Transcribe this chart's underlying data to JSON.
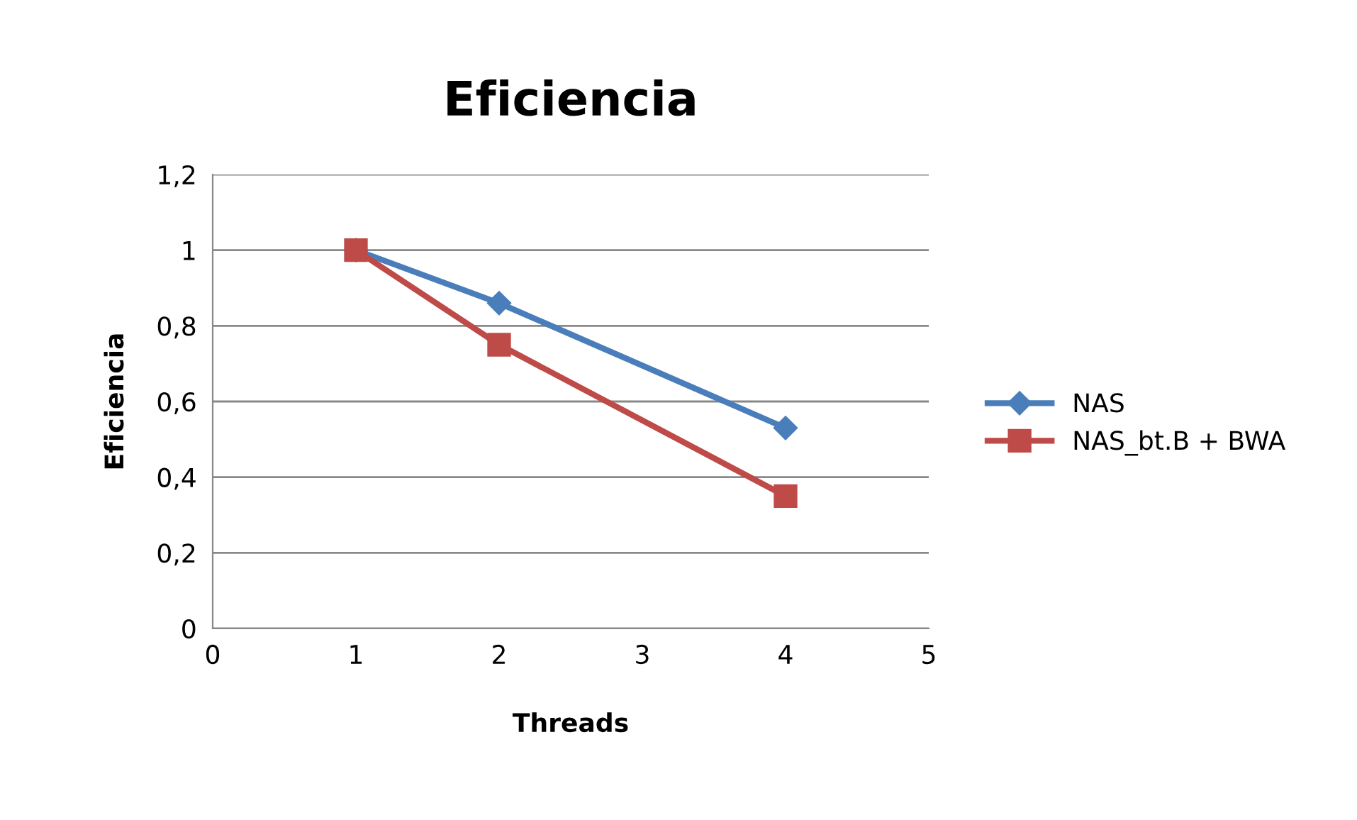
{
  "chart_data": {
    "type": "line",
    "title": "Eficiencia",
    "xlabel": "Threads",
    "ylabel": "Eficiencia",
    "x": [
      1,
      2,
      4
    ],
    "series": [
      {
        "name": "NAS",
        "color": "#4a7ebb",
        "marker": "diamond",
        "values": [
          1,
          0.86,
          0.53
        ]
      },
      {
        "name": "NAS_bt.B + BWA",
        "color": "#be4b48",
        "marker": "square",
        "values": [
          1,
          0.75,
          0.35
        ]
      }
    ],
    "xlim": [
      0,
      5
    ],
    "xticks": [
      0,
      1,
      2,
      3,
      4,
      5
    ],
    "ylim": [
      0,
      1.2
    ],
    "yticks": [
      {
        "value": 0,
        "label": "0"
      },
      {
        "value": 0.2,
        "label": "0,2"
      },
      {
        "value": 0.4,
        "label": "0,4"
      },
      {
        "value": 0.6,
        "label": "0,6"
      },
      {
        "value": 0.8,
        "label": "0,8"
      },
      {
        "value": 1,
        "label": "1"
      },
      {
        "value": 1.2,
        "label": "1,2"
      }
    ],
    "grid": "y",
    "legend": "right",
    "line_style": "solid"
  }
}
